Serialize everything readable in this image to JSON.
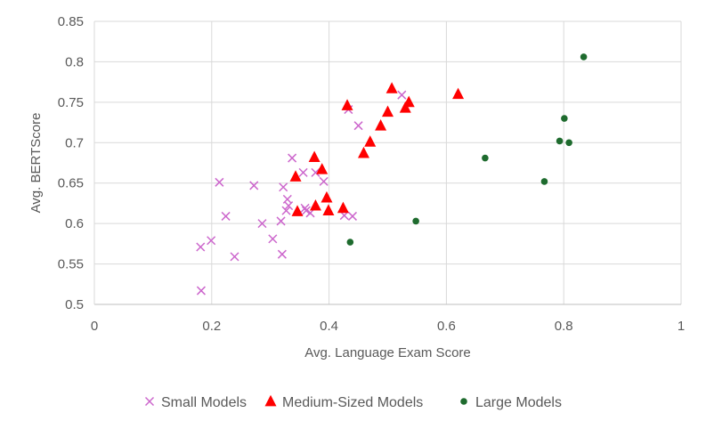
{
  "chart_data": {
    "type": "scatter",
    "title": "",
    "xlabel": "Avg. Language Exam Score",
    "ylabel": "Avg. BERTScore",
    "xlim": [
      0,
      1
    ],
    "ylim": [
      0.5,
      0.85
    ],
    "xticks": [
      0,
      0.2,
      0.4,
      0.6,
      0.8,
      1
    ],
    "yticks": [
      0.5,
      0.55,
      0.6,
      0.65,
      0.7,
      0.75,
      0.8,
      0.85
    ],
    "xtick_labels": [
      "0",
      "0.2",
      "0.4",
      "0.6",
      "0.8",
      "1"
    ],
    "ytick_labels": [
      "0.5",
      "0.55",
      "0.6",
      "0.65",
      "0.7",
      "0.75",
      "0.8",
      "0.85"
    ],
    "grid": true,
    "legend_position": "bottom",
    "series": [
      {
        "name": "Small Models",
        "marker": "x",
        "color": "#CC66CC",
        "points": [
          [
            0.182,
            0.517
          ],
          [
            0.181,
            0.571
          ],
          [
            0.199,
            0.579
          ],
          [
            0.213,
            0.651
          ],
          [
            0.224,
            0.609
          ],
          [
            0.239,
            0.559
          ],
          [
            0.272,
            0.647
          ],
          [
            0.286,
            0.6
          ],
          [
            0.304,
            0.581
          ],
          [
            0.318,
            0.603
          ],
          [
            0.32,
            0.562
          ],
          [
            0.322,
            0.645
          ],
          [
            0.327,
            0.616
          ],
          [
            0.329,
            0.63
          ],
          [
            0.331,
            0.622
          ],
          [
            0.337,
            0.681
          ],
          [
            0.356,
            0.663
          ],
          [
            0.359,
            0.619
          ],
          [
            0.361,
            0.616
          ],
          [
            0.368,
            0.613
          ],
          [
            0.377,
            0.663
          ],
          [
            0.391,
            0.652
          ],
          [
            0.426,
            0.61
          ],
          [
            0.433,
            0.741
          ],
          [
            0.44,
            0.609
          ],
          [
            0.45,
            0.721
          ],
          [
            0.524,
            0.759
          ]
        ]
      },
      {
        "name": "Medium-Sized Models",
        "marker": "triangle",
        "color": "#FF0000",
        "points": [
          [
            0.343,
            0.658
          ],
          [
            0.346,
            0.615
          ],
          [
            0.375,
            0.682
          ],
          [
            0.377,
            0.622
          ],
          [
            0.388,
            0.667
          ],
          [
            0.396,
            0.632
          ],
          [
            0.399,
            0.616
          ],
          [
            0.424,
            0.619
          ],
          [
            0.431,
            0.746
          ],
          [
            0.459,
            0.687
          ],
          [
            0.47,
            0.701
          ],
          [
            0.488,
            0.721
          ],
          [
            0.5,
            0.738
          ],
          [
            0.507,
            0.767
          ],
          [
            0.53,
            0.743
          ],
          [
            0.536,
            0.75
          ],
          [
            0.62,
            0.76
          ]
        ]
      },
      {
        "name": "Large Models",
        "marker": "circle",
        "color": "#1E6B2E",
        "points": [
          [
            0.436,
            0.577
          ],
          [
            0.548,
            0.603
          ],
          [
            0.666,
            0.681
          ],
          [
            0.767,
            0.652
          ],
          [
            0.793,
            0.702
          ],
          [
            0.801,
            0.73
          ],
          [
            0.809,
            0.7
          ],
          [
            0.834,
            0.806
          ]
        ]
      }
    ]
  }
}
